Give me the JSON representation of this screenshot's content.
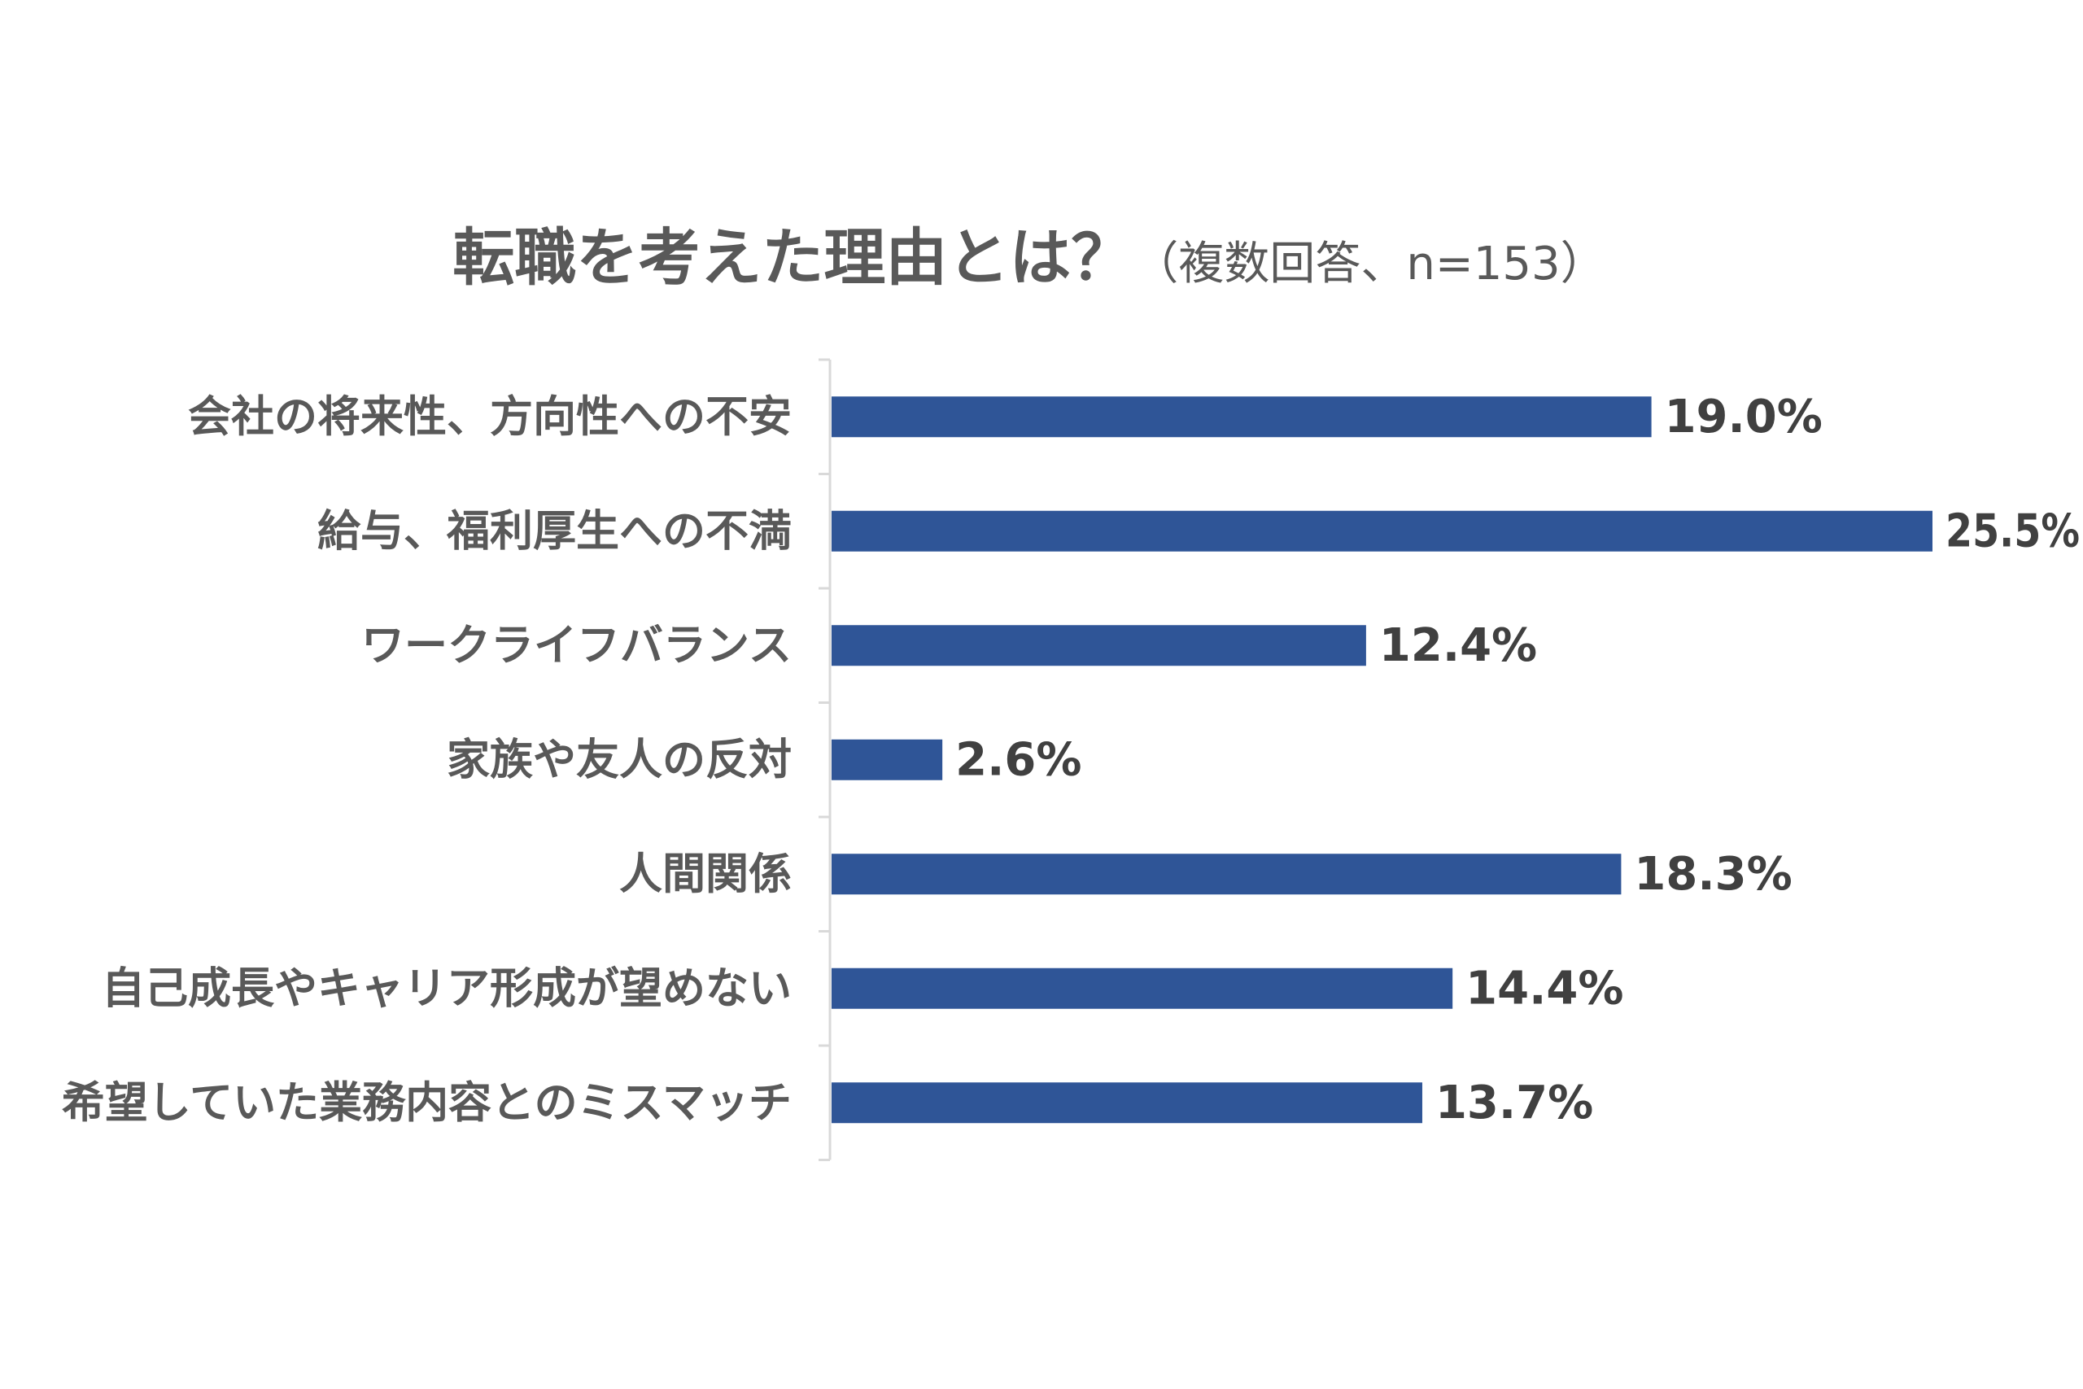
{
  "chart_data": {
    "type": "bar",
    "orientation": "horizontal",
    "title": "転職を考えた理由とは？",
    "subtitle": "（複数回答、n=153）",
    "categories": [
      "会社の将来性、方向性への不安",
      "給与、福利厚生への不満",
      "ワークライフバランス",
      "家族や友人の反対",
      "人間関係",
      "自己成長やキャリア形成が望めない",
      "希望していた業務内容とのミスマッチ"
    ],
    "values": [
      19.0,
      25.5,
      12.4,
      2.6,
      18.3,
      14.4,
      13.7
    ],
    "value_labels": [
      "19.0%",
      "25.5%",
      "12.4%",
      "2.6%",
      "18.3%",
      "14.4%",
      "13.7%"
    ],
    "unit": "%",
    "xlim": [
      0,
      25.5
    ],
    "grid": false,
    "legend": "none",
    "bar_color": "#2f5597",
    "text_color": "#595959"
  }
}
